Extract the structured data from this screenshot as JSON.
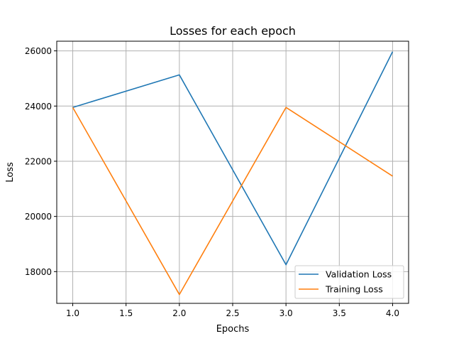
{
  "chart_data": {
    "type": "line",
    "title": "Losses for each epoch",
    "xlabel": "Epochs",
    "ylabel": "Loss",
    "x": [
      1.0,
      2.0,
      3.0,
      4.0
    ],
    "xlim": [
      0.85,
      4.15
    ],
    "ylim": [
      16850,
      26350
    ],
    "xticks": [
      1.0,
      1.5,
      2.0,
      2.5,
      3.0,
      3.5,
      4.0
    ],
    "xtick_labels": [
      "1.0",
      "1.5",
      "2.0",
      "2.5",
      "3.0",
      "3.5",
      "4.0"
    ],
    "yticks": [
      18000,
      20000,
      22000,
      24000,
      26000
    ],
    "ytick_labels": [
      "18000",
      "20000",
      "22000",
      "24000",
      "26000"
    ],
    "grid": true,
    "legend_position": "lower-right",
    "series": [
      {
        "name": "Validation Loss",
        "color": "#1f77b4",
        "values": [
          23950,
          25130,
          18250,
          25970
        ]
      },
      {
        "name": "Training Loss",
        "color": "#ff7f0e",
        "values": [
          23950,
          17170,
          23950,
          21460
        ]
      }
    ]
  }
}
